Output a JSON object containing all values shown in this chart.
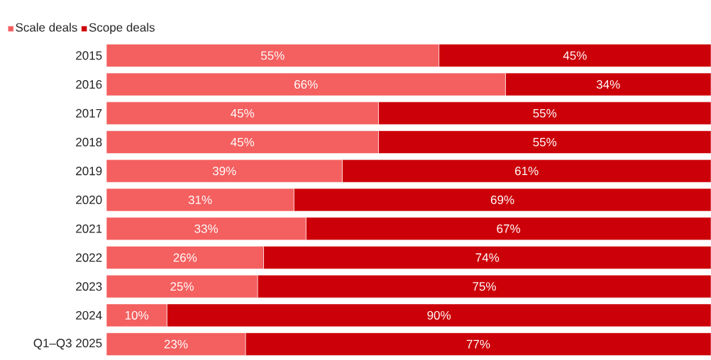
{
  "chart_data": {
    "type": "bar",
    "orientation": "horizontal",
    "stacked": true,
    "categories": [
      "2015",
      "2016",
      "2017",
      "2018",
      "2019",
      "2020",
      "2021",
      "2022",
      "2023",
      "2024",
      "Q1–Q3 2025"
    ],
    "series": [
      {
        "name": "Scale deals",
        "color": "#f45f5f",
        "values": [
          55,
          66,
          45,
          45,
          39,
          31,
          33,
          26,
          25,
          10,
          23
        ],
        "value_labels": [
          "55%",
          "66%",
          "45%",
          "45%",
          "39%",
          "31%",
          "33%",
          "26%",
          "25%",
          "10%",
          "23%"
        ]
      },
      {
        "name": "Scope deals",
        "color": "#cc0008",
        "values": [
          45,
          34,
          55,
          55,
          61,
          69,
          67,
          74,
          75,
          90,
          77
        ],
        "value_labels": [
          "45%",
          "34%",
          "55%",
          "55%",
          "61%",
          "69%",
          "67%",
          "74%",
          "75%",
          "90%",
          "77%"
        ]
      }
    ],
    "tick_labels": "y",
    "legend": "top left"
  }
}
